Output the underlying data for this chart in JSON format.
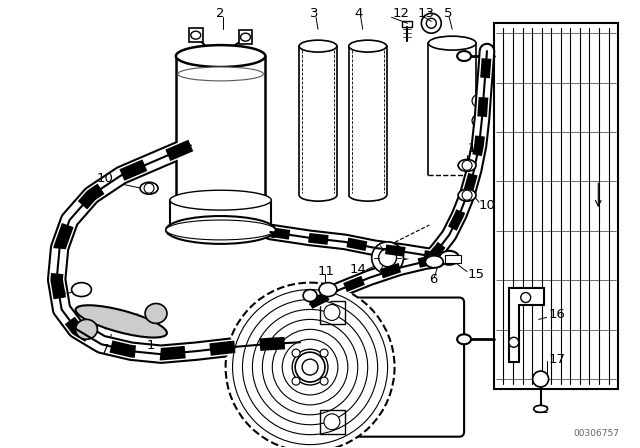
{
  "bg_color": "#ffffff",
  "diagram_color": "#000000",
  "watermark": "00306757",
  "fig_width": 6.4,
  "fig_height": 4.48,
  "dpi": 100
}
